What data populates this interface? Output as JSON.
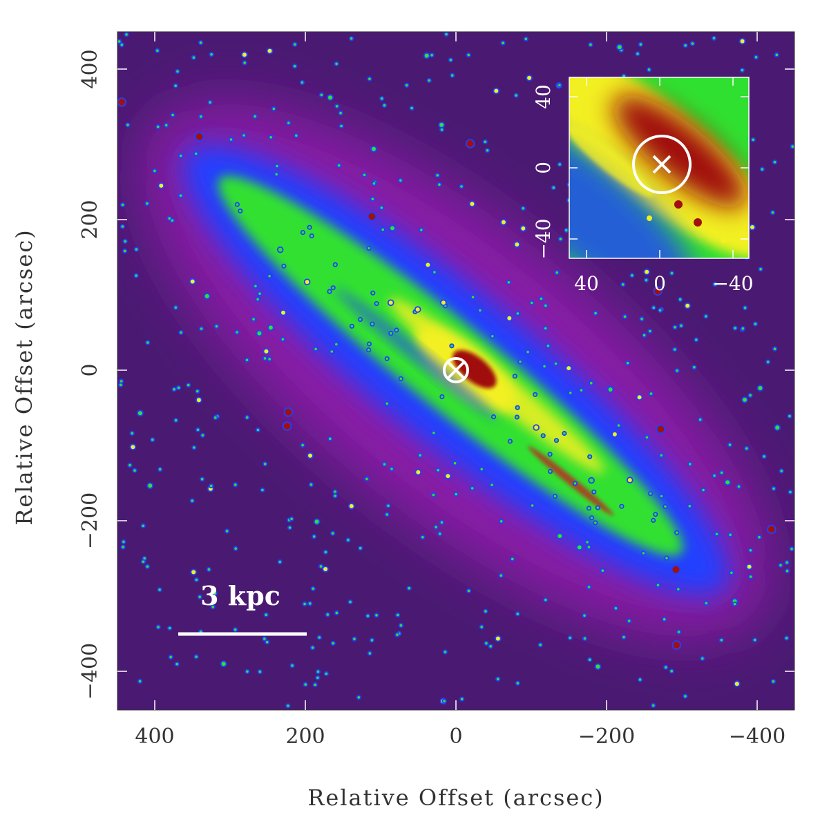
{
  "figure": {
    "x_axis": {
      "label": "Relative Offset (arcsec)",
      "range": [
        450,
        -450
      ],
      "ticks": [
        "400",
        "200",
        "0",
        "−200",
        "−400"
      ],
      "tick_values": [
        400,
        200,
        0,
        -200,
        -400
      ]
    },
    "y_axis": {
      "label": "Relative Offset (arcsec)",
      "range": [
        -450,
        450
      ],
      "ticks": [
        "400",
        "200",
        "0",
        "−200",
        "−400"
      ],
      "tick_values": [
        400,
        200,
        0,
        -200,
        -400
      ]
    },
    "scale_bar": {
      "label": "3 kpc"
    },
    "inset": {
      "x_ticks": [
        "40",
        "0",
        "−40"
      ],
      "y_ticks": [
        "40",
        "0",
        "−40"
      ],
      "range": [
        -50,
        50
      ]
    },
    "colors": {
      "background": "#4a1a72",
      "halo": "#8a1aa8",
      "blue": "#2040ff",
      "green": "#30e030",
      "yellow": "#f2f020",
      "red": "#a01010",
      "marker": "#ffffff"
    }
  }
}
